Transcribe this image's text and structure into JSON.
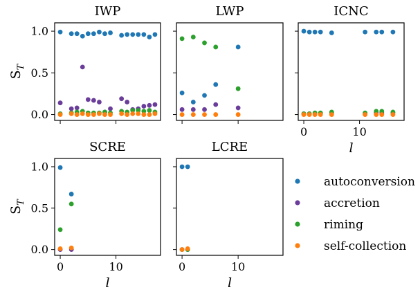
{
  "legend": {
    "placement": "right",
    "entries": [
      {
        "label": "autoconversion",
        "color": "#1f77b4"
      },
      {
        "label": "accretion",
        "color": "#6a3d9a"
      },
      {
        "label": "riming",
        "color": "#2ca02c"
      },
      {
        "label": "self-collection",
        "color": "#ff7f0e"
      }
    ]
  },
  "chart_data": [
    {
      "type": "scatter",
      "title": "IWP",
      "ylabel": "S_T",
      "xlabel": "",
      "xlim": [
        -1,
        18
      ],
      "ylim": [
        -0.07,
        1.1
      ],
      "xticks": [
        0,
        10
      ],
      "yticks": [
        "0.0",
        "0.5",
        "1.0"
      ],
      "grid": false,
      "series": [
        {
          "name": "autoconversion",
          "color": "#1f77b4",
          "x": [
            0,
            2,
            3,
            4,
            5,
            6,
            7,
            8,
            9,
            11,
            12,
            13,
            14,
            15,
            16,
            17
          ],
          "y": [
            0.99,
            0.97,
            0.97,
            0.94,
            0.97,
            0.97,
            0.99,
            0.97,
            0.98,
            0.95,
            0.96,
            0.96,
            0.96,
            0.96,
            0.93,
            0.96
          ]
        },
        {
          "name": "accretion",
          "color": "#6a3d9a",
          "x": [
            0,
            2,
            3,
            4,
            5,
            6,
            7,
            8,
            9,
            11,
            12,
            13,
            14,
            15,
            16,
            17
          ],
          "y": [
            0.14,
            0.07,
            0.08,
            0.57,
            0.18,
            0.17,
            0.15,
            0.03,
            0.07,
            0.19,
            0.15,
            0.06,
            0.07,
            0.1,
            0.11,
            0.12
          ]
        },
        {
          "name": "riming",
          "color": "#2ca02c",
          "x": [
            0,
            2,
            3,
            4,
            5,
            6,
            7,
            8,
            9,
            11,
            12,
            13,
            14,
            15,
            16,
            17
          ],
          "y": [
            0.01,
            0.02,
            0.03,
            0.04,
            0.02,
            0.02,
            0.02,
            0.03,
            0.02,
            0.04,
            0.03,
            0.05,
            0.05,
            0.04,
            0.05,
            0.03
          ]
        },
        {
          "name": "self-collection",
          "color": "#ff7f0e",
          "x": [
            0,
            2,
            3,
            4,
            5,
            6,
            7,
            8,
            9,
            11,
            12,
            13,
            14,
            15,
            16,
            17
          ],
          "y": [
            0.0,
            0.01,
            0.0,
            0.01,
            0.0,
            0.0,
            0.01,
            0.0,
            0.0,
            0.01,
            0.0,
            0.01,
            0.01,
            0.0,
            0.0,
            0.01
          ]
        }
      ]
    },
    {
      "type": "scatter",
      "title": "LWP",
      "ylabel": "",
      "xlabel": "",
      "xlim": [
        -1,
        18
      ],
      "ylim": [
        -0.07,
        1.1
      ],
      "xticks": [
        0,
        10
      ],
      "yticks": [
        "0.0",
        "0.5",
        "1.0"
      ],
      "grid": false,
      "series": [
        {
          "name": "autoconversion",
          "color": "#1f77b4",
          "x": [
            0,
            2,
            4,
            6,
            10
          ],
          "y": [
            0.26,
            0.15,
            0.23,
            0.36,
            0.81
          ]
        },
        {
          "name": "accretion",
          "color": "#6a3d9a",
          "x": [
            0,
            2,
            4,
            6,
            10
          ],
          "y": [
            0.06,
            0.06,
            0.06,
            0.12,
            0.08
          ]
        },
        {
          "name": "riming",
          "color": "#2ca02c",
          "x": [
            0,
            2,
            4,
            6,
            10
          ],
          "y": [
            0.91,
            0.93,
            0.86,
            0.81,
            0.31
          ]
        },
        {
          "name": "self-collection",
          "color": "#ff7f0e",
          "x": [
            0,
            2,
            4,
            6,
            10
          ],
          "y": [
            0.0,
            0.0,
            0.0,
            0.0,
            0.0
          ]
        }
      ]
    },
    {
      "type": "scatter",
      "title": "ICNC",
      "ylabel": "",
      "xlabel": "l",
      "xlim": [
        -1,
        18
      ],
      "ylim": [
        -0.07,
        1.1
      ],
      "xticks": [
        0,
        10
      ],
      "yticks": [
        "0.0",
        "0.5",
        "1.0"
      ],
      "grid": false,
      "series": [
        {
          "name": "autoconversion",
          "color": "#1f77b4",
          "x": [
            0,
            1,
            2,
            3,
            5,
            11,
            13,
            14,
            16
          ],
          "y": [
            1.0,
            0.99,
            0.99,
            0.99,
            0.98,
            0.99,
            0.99,
            0.99,
            0.99
          ]
        },
        {
          "name": "accretion",
          "color": "#6a3d9a",
          "x": [
            0,
            1,
            2,
            3,
            5,
            11,
            13,
            14,
            16
          ],
          "y": [
            0.01,
            0.01,
            0.01,
            0.01,
            0.02,
            0.01,
            0.02,
            0.02,
            0.02
          ]
        },
        {
          "name": "riming",
          "color": "#2ca02c",
          "x": [
            0,
            1,
            2,
            3,
            5,
            11,
            13,
            14,
            16
          ],
          "y": [
            0.01,
            0.01,
            0.02,
            0.02,
            0.03,
            0.02,
            0.04,
            0.04,
            0.03
          ]
        },
        {
          "name": "self-collection",
          "color": "#ff7f0e",
          "x": [
            0,
            1,
            2,
            3,
            5,
            11,
            13,
            14,
            16
          ],
          "y": [
            0.0,
            0.0,
            0.0,
            0.0,
            0.0,
            0.0,
            0.0,
            0.0,
            0.0
          ]
        }
      ]
    },
    {
      "type": "scatter",
      "title": "SCRE",
      "ylabel": "S_T",
      "xlabel": "l",
      "xlim": [
        -1,
        18
      ],
      "ylim": [
        -0.07,
        1.1
      ],
      "xticks": [
        0,
        10
      ],
      "yticks": [
        "0.0",
        "0.5",
        "1.0"
      ],
      "grid": false,
      "series": [
        {
          "name": "autoconversion",
          "color": "#1f77b4",
          "x": [
            0,
            2
          ],
          "y": [
            0.99,
            0.67
          ]
        },
        {
          "name": "accretion",
          "color": "#6a3d9a",
          "x": [
            0,
            2
          ],
          "y": [
            0.0,
            0.0
          ]
        },
        {
          "name": "riming",
          "color": "#2ca02c",
          "x": [
            0,
            2
          ],
          "y": [
            0.24,
            0.55
          ]
        },
        {
          "name": "self-collection",
          "color": "#ff7f0e",
          "x": [
            0,
            2
          ],
          "y": [
            0.01,
            0.02
          ]
        }
      ]
    },
    {
      "type": "scatter",
      "title": "LCRE",
      "ylabel": "",
      "xlabel": "l",
      "xlim": [
        -1,
        18
      ],
      "ylim": [
        -0.07,
        1.1
      ],
      "xticks": [
        0,
        10
      ],
      "yticks": [
        "0.0",
        "0.5",
        "1.0"
      ],
      "grid": false,
      "series": [
        {
          "name": "autoconversion",
          "color": "#1f77b4",
          "x": [
            0,
            1
          ],
          "y": [
            1.0,
            1.0
          ]
        },
        {
          "name": "accretion",
          "color": "#6a3d9a",
          "x": [
            0,
            1
          ],
          "y": [
            0.0,
            0.0
          ]
        },
        {
          "name": "riming",
          "color": "#2ca02c",
          "x": [
            0,
            1
          ],
          "y": [
            0.0,
            0.0
          ]
        },
        {
          "name": "self-collection",
          "color": "#ff7f0e",
          "x": [
            0,
            1
          ],
          "y": [
            0.0,
            0.01
          ]
        }
      ]
    }
  ]
}
